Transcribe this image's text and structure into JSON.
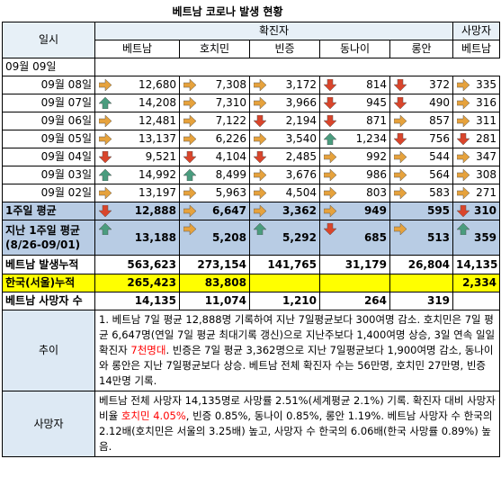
{
  "title": "베트남 코로나 발생 현황",
  "header": {
    "date_col": "일시",
    "confirmed_group": "확진자",
    "deaths_group": "사망자",
    "columns": [
      "베트남",
      "호치민",
      "빈증",
      "동나이",
      "롱안"
    ],
    "deaths_column": "베트남"
  },
  "current_date": "09월 09일",
  "rows": [
    {
      "date": "09월 08일",
      "values": [
        "12,680",
        "7,308",
        "3,172",
        "814",
        "372"
      ],
      "arrows": [
        "right",
        "right",
        "right",
        "down",
        "down"
      ],
      "death": "335",
      "death_arrow": "right"
    },
    {
      "date": "09월 07일",
      "values": [
        "14,208",
        "7,310",
        "3,966",
        "945",
        "490"
      ],
      "arrows": [
        "up",
        "right",
        "right",
        "down",
        "down"
      ],
      "death": "316",
      "death_arrow": "right"
    },
    {
      "date": "09월 06일",
      "values": [
        "12,481",
        "7,122",
        "2,194",
        "871",
        "857"
      ],
      "arrows": [
        "right",
        "right",
        "down",
        "down",
        "right"
      ],
      "death": "311",
      "death_arrow": "right"
    },
    {
      "date": "09월 05일",
      "values": [
        "13,137",
        "6,226",
        "3,540",
        "1,234",
        "756"
      ],
      "arrows": [
        "right",
        "right",
        "right",
        "up",
        "down"
      ],
      "death": "281",
      "death_arrow": "down"
    },
    {
      "date": "09월 04일",
      "values": [
        "9,521",
        "4,104",
        "2,485",
        "992",
        "544"
      ],
      "arrows": [
        "down",
        "down",
        "down",
        "right",
        "right"
      ],
      "death": "347",
      "death_arrow": "right"
    },
    {
      "date": "09월 03일",
      "values": [
        "14,992",
        "8,499",
        "3,676",
        "986",
        "564"
      ],
      "arrows": [
        "up",
        "up",
        "right",
        "right",
        "right"
      ],
      "death": "308",
      "death_arrow": "right"
    },
    {
      "date": "09월 02일",
      "values": [
        "13,197",
        "5,963",
        "4,504",
        "803",
        "583"
      ],
      "arrows": [
        "right",
        "right",
        "right",
        "right",
        "right"
      ],
      "death": "271",
      "death_arrow": "right"
    }
  ],
  "week_avg": {
    "label": "1주일 평균",
    "values": [
      "12,888",
      "6,647",
      "3,362",
      "949",
      "595"
    ],
    "arrows": [
      "down",
      "right",
      "right",
      "right",
      "none"
    ],
    "death": "310",
    "death_arrow": "down"
  },
  "last_week_avg": {
    "label1": "지난 1주일 평균",
    "label2": "(8/26-09/01)",
    "values": [
      "13,188",
      "5,208",
      "5,292",
      "685",
      "513"
    ],
    "arrows": [
      "up",
      "right",
      "up",
      "down",
      "right"
    ],
    "death": "359",
    "death_arrow": "up"
  },
  "vn_total": {
    "label": "베트남 발생누적",
    "values": [
      "563,623",
      "273,154",
      "141,765",
      "31,179",
      "26,804"
    ],
    "death": "14,135"
  },
  "korea_total": {
    "label": "한국(서울)누적",
    "values": [
      "265,423",
      "83,808",
      "",
      "",
      ""
    ],
    "death": "2,334"
  },
  "vn_deaths": {
    "label": "베트남 사망자 수",
    "values": [
      "14,135",
      "11,074",
      "1,210",
      "264",
      "319"
    ],
    "death": ""
  },
  "trend": {
    "label": "추이",
    "text_a": "1. 베트남 7일 평균 12,888명 기록하여  지난 7일평균보다 300여명 감소. 호치민은 7일 평균 6,647명(연일 7일 평균 최대기록 갱신)으로 지난주보다 1,400여명 상승, 3일 연속 일일확진자 ",
    "text_red": "7천명대",
    "text_b": ". 빈증은 7일 평균 3,362명으로 지난 7일평균보다 1,900여명 감소, 동나이와 롱안은 지난 7일평균보다 상승. 베트남 전체 확진자 수는 56만명, 호치민 27만명, 빈증 14만명 기록."
  },
  "deaths": {
    "label": "사망자",
    "text_a": "베트남 전체 사망자 14,135명로 사망률 2.51%(세계평균 2.1%) 기록.  확진자 대비 사망자 비율 ",
    "text_red": "호치민 4.05%",
    "text_b": ", 빈증 0.85%, 동나이 0.85%, 롱안 1.19%. 베트남 사망자 수 한국의 2.12배(호치민은 서울의 3.25배) 높고, 사망자 수 한국의 6.06배(한국 사망률 0.89%) 높음."
  },
  "colors": {
    "up": "#4a9c7e",
    "right": "#e6a23c",
    "down": "#d9452b",
    "avg_bg": "#b8cce4",
    "korea_bg": "#ffff00",
    "header_bg": "#dde9f4"
  }
}
